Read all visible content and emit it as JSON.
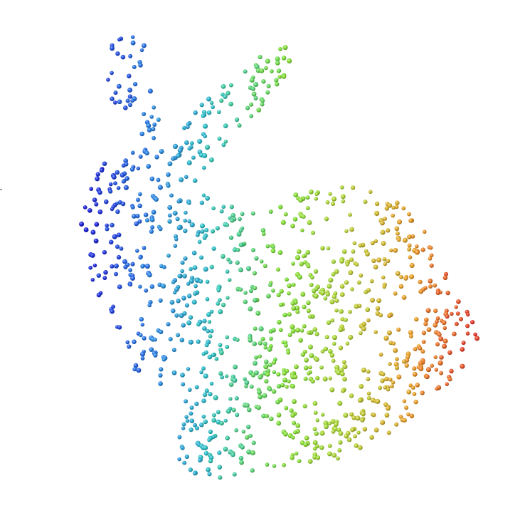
{
  "scene": {
    "subject": "bunny-point-cloud",
    "background_color": "#ffffff",
    "colormap": {
      "name": "jet",
      "stops": [
        "#1a10d8",
        "#2a7ee8",
        "#2fc6c8",
        "#7fe23a",
        "#b8d83a",
        "#f0a02a",
        "#e8322a"
      ],
      "direction": "left-to-right"
    }
  }
}
